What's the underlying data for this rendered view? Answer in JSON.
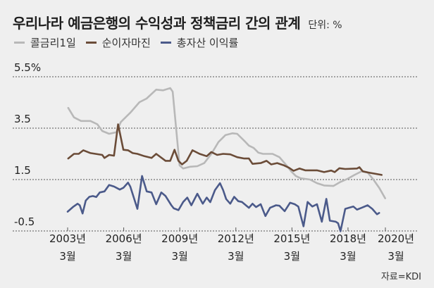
{
  "chart_data": {
    "type": "line",
    "title": "우리나라 예금은행의 수익성과 정책금리 간의 관계",
    "unit_label": "단위: %",
    "source": "자료=KDI",
    "xlabel": "",
    "ylabel": "",
    "xlim": [
      2003.17,
      2020.17
    ],
    "ylim": [
      -0.5,
      5.5
    ],
    "grid": true,
    "legend_position": "top-left",
    "yticks": [
      {
        "value": 5.5,
        "label": "5.5%"
      },
      {
        "value": 3.5,
        "label": "3.5"
      },
      {
        "value": 1.5,
        "label": "1.5"
      },
      {
        "value": -0.5,
        "label": "-0.5"
      }
    ],
    "xticks": [
      {
        "value": 2003.17,
        "label": [
          "2003년",
          "3월"
        ]
      },
      {
        "value": 2006.17,
        "label": [
          "2006년",
          "3월"
        ]
      },
      {
        "value": 2009.17,
        "label": [
          "2009년",
          "3월"
        ]
      },
      {
        "value": 2012.17,
        "label": [
          "2012년",
          "3월"
        ]
      },
      {
        "value": 2015.17,
        "label": [
          "2015년",
          "3월"
        ]
      },
      {
        "value": 2018.17,
        "label": [
          "2018년",
          "3월"
        ]
      },
      {
        "value": 2020.17,
        "label": [
          "2020년",
          "3월"
        ]
      }
    ],
    "series": [
      {
        "name": "콜금리1일",
        "color": "#b8b8b8",
        "points": [
          [
            2003.2,
            4.29
          ],
          [
            2003.51,
            3.92
          ],
          [
            2003.89,
            3.78
          ],
          [
            2004.39,
            3.78
          ],
          [
            2004.76,
            3.65
          ],
          [
            2005.02,
            3.39
          ],
          [
            2005.39,
            3.28
          ],
          [
            2005.77,
            3.34
          ],
          [
            2006.02,
            3.74
          ],
          [
            2006.52,
            4.1
          ],
          [
            2007.01,
            4.51
          ],
          [
            2007.39,
            4.65
          ],
          [
            2007.91,
            5.0
          ],
          [
            2008.28,
            4.97
          ],
          [
            2008.66,
            5.06
          ],
          [
            2008.79,
            4.92
          ],
          [
            2009.16,
            2.05
          ],
          [
            2009.35,
            1.93
          ],
          [
            2009.73,
            2.0
          ],
          [
            2010.11,
            2.02
          ],
          [
            2010.48,
            2.14
          ],
          [
            2010.86,
            2.5
          ],
          [
            2011.24,
            2.96
          ],
          [
            2011.61,
            3.23
          ],
          [
            2011.99,
            3.3
          ],
          [
            2012.24,
            3.28
          ],
          [
            2012.62,
            3.01
          ],
          [
            2012.87,
            2.82
          ],
          [
            2013.12,
            2.73
          ],
          [
            2013.37,
            2.55
          ],
          [
            2013.62,
            2.5
          ],
          [
            2014.13,
            2.5
          ],
          [
            2014.5,
            2.37
          ],
          [
            2014.88,
            2.05
          ],
          [
            2015.13,
            1.82
          ],
          [
            2015.38,
            1.64
          ],
          [
            2015.64,
            1.55
          ],
          [
            2016.14,
            1.5
          ],
          [
            2016.51,
            1.36
          ],
          [
            2016.89,
            1.27
          ],
          [
            2017.39,
            1.25
          ],
          [
            2017.77,
            1.41
          ],
          [
            2018.15,
            1.53
          ],
          [
            2018.52,
            1.68
          ],
          [
            2018.9,
            1.82
          ],
          [
            2019.22,
            1.77
          ],
          [
            2019.53,
            1.5
          ],
          [
            2019.84,
            1.18
          ],
          [
            2020.16,
            0.77
          ]
        ]
      },
      {
        "name": "순이자마진",
        "color": "#6b4c38",
        "points": [
          [
            2003.2,
            2.32
          ],
          [
            2003.51,
            2.5
          ],
          [
            2003.76,
            2.5
          ],
          [
            2004.01,
            2.64
          ],
          [
            2004.39,
            2.53
          ],
          [
            2005.02,
            2.46
          ],
          [
            2005.14,
            2.34
          ],
          [
            2005.39,
            2.46
          ],
          [
            2005.65,
            2.43
          ],
          [
            2005.87,
            3.65
          ],
          [
            2006.15,
            2.66
          ],
          [
            2006.4,
            2.64
          ],
          [
            2006.65,
            2.53
          ],
          [
            2006.9,
            2.5
          ],
          [
            2007.28,
            2.41
          ],
          [
            2007.66,
            2.34
          ],
          [
            2007.91,
            2.5
          ],
          [
            2008.41,
            2.23
          ],
          [
            2008.66,
            2.23
          ],
          [
            2008.89,
            2.66
          ],
          [
            2009.1,
            2.23
          ],
          [
            2009.29,
            2.09
          ],
          [
            2009.54,
            2.23
          ],
          [
            2009.85,
            2.64
          ],
          [
            2010.23,
            2.5
          ],
          [
            2010.61,
            2.41
          ],
          [
            2010.86,
            2.57
          ],
          [
            2011.17,
            2.46
          ],
          [
            2011.49,
            2.5
          ],
          [
            2011.87,
            2.48
          ],
          [
            2012.24,
            2.37
          ],
          [
            2012.62,
            2.32
          ],
          [
            2012.87,
            2.32
          ],
          [
            2013.06,
            2.11
          ],
          [
            2013.5,
            2.14
          ],
          [
            2013.81,
            2.23
          ],
          [
            2014.06,
            2.09
          ],
          [
            2014.38,
            2.14
          ],
          [
            2014.75,
            2.05
          ],
          [
            2015.01,
            1.96
          ],
          [
            2015.26,
            1.84
          ],
          [
            2015.57,
            1.93
          ],
          [
            2015.88,
            1.86
          ],
          [
            2016.51,
            1.86
          ],
          [
            2016.89,
            1.79
          ],
          [
            2017.27,
            1.85
          ],
          [
            2017.46,
            1.79
          ],
          [
            2017.71,
            1.94
          ],
          [
            2018.02,
            1.91
          ],
          [
            2018.65,
            1.93
          ],
          [
            2018.78,
            1.98
          ],
          [
            2018.96,
            1.82
          ],
          [
            2019.28,
            1.77
          ],
          [
            2019.97,
            1.68
          ]
        ]
      },
      {
        "name": "총자산 이익률",
        "color": "#4b5a8a",
        "points": [
          [
            2003.17,
            0.25
          ],
          [
            2003.45,
            0.43
          ],
          [
            2003.7,
            0.56
          ],
          [
            2003.82,
            0.5
          ],
          [
            2003.97,
            0.18
          ],
          [
            2004.14,
            0.68
          ],
          [
            2004.33,
            0.83
          ],
          [
            2004.52,
            0.86
          ],
          [
            2004.7,
            0.82
          ],
          [
            2004.89,
            1.0
          ],
          [
            2005.14,
            1.04
          ],
          [
            2005.39,
            1.29
          ],
          [
            2005.65,
            1.23
          ],
          [
            2005.96,
            1.11
          ],
          [
            2006.15,
            1.18
          ],
          [
            2006.4,
            1.38
          ],
          [
            2006.52,
            1.23
          ],
          [
            2006.9,
            0.36
          ],
          [
            2007.15,
            1.64
          ],
          [
            2007.4,
            1.04
          ],
          [
            2007.66,
            1.0
          ],
          [
            2007.91,
            0.54
          ],
          [
            2008.18,
            1.0
          ],
          [
            2008.41,
            0.86
          ],
          [
            2008.72,
            0.5
          ],
          [
            2008.85,
            0.38
          ],
          [
            2009.1,
            0.31
          ],
          [
            2009.35,
            0.63
          ],
          [
            2009.57,
            0.8
          ],
          [
            2009.79,
            0.5
          ],
          [
            2010.11,
            0.95
          ],
          [
            2010.4,
            0.56
          ],
          [
            2010.61,
            0.8
          ],
          [
            2010.8,
            0.62
          ],
          [
            2011.05,
            1.09
          ],
          [
            2011.32,
            1.36
          ],
          [
            2011.49,
            1.09
          ],
          [
            2011.65,
            0.74
          ],
          [
            2011.87,
            0.56
          ],
          [
            2012.08,
            0.83
          ],
          [
            2012.3,
            0.66
          ],
          [
            2012.49,
            0.63
          ],
          [
            2012.87,
            0.4
          ],
          [
            2013.06,
            0.56
          ],
          [
            2013.25,
            0.43
          ],
          [
            2013.5,
            0.54
          ],
          [
            2013.75,
            0.08
          ],
          [
            2014.0,
            0.4
          ],
          [
            2014.32,
            0.5
          ],
          [
            2014.5,
            0.48
          ],
          [
            2014.78,
            0.27
          ],
          [
            2015.07,
            0.6
          ],
          [
            2015.32,
            0.54
          ],
          [
            2015.51,
            0.45
          ],
          [
            2015.79,
            -0.32
          ],
          [
            2016.01,
            0.63
          ],
          [
            2016.26,
            0.45
          ],
          [
            2016.51,
            0.54
          ],
          [
            2016.77,
            -0.14
          ],
          [
            2017.01,
            0.75
          ],
          [
            2017.2,
            -0.1
          ],
          [
            2017.52,
            -0.14
          ],
          [
            2017.64,
            -0.2
          ],
          [
            2017.77,
            -0.51
          ],
          [
            2018.02,
            0.36
          ],
          [
            2018.21,
            0.4
          ],
          [
            2018.46,
            0.45
          ],
          [
            2018.65,
            0.33
          ],
          [
            2018.9,
            0.4
          ],
          [
            2019.22,
            0.5
          ],
          [
            2019.47,
            0.36
          ],
          [
            2019.72,
            0.15
          ],
          [
            2019.84,
            0.2
          ]
        ]
      }
    ]
  }
}
